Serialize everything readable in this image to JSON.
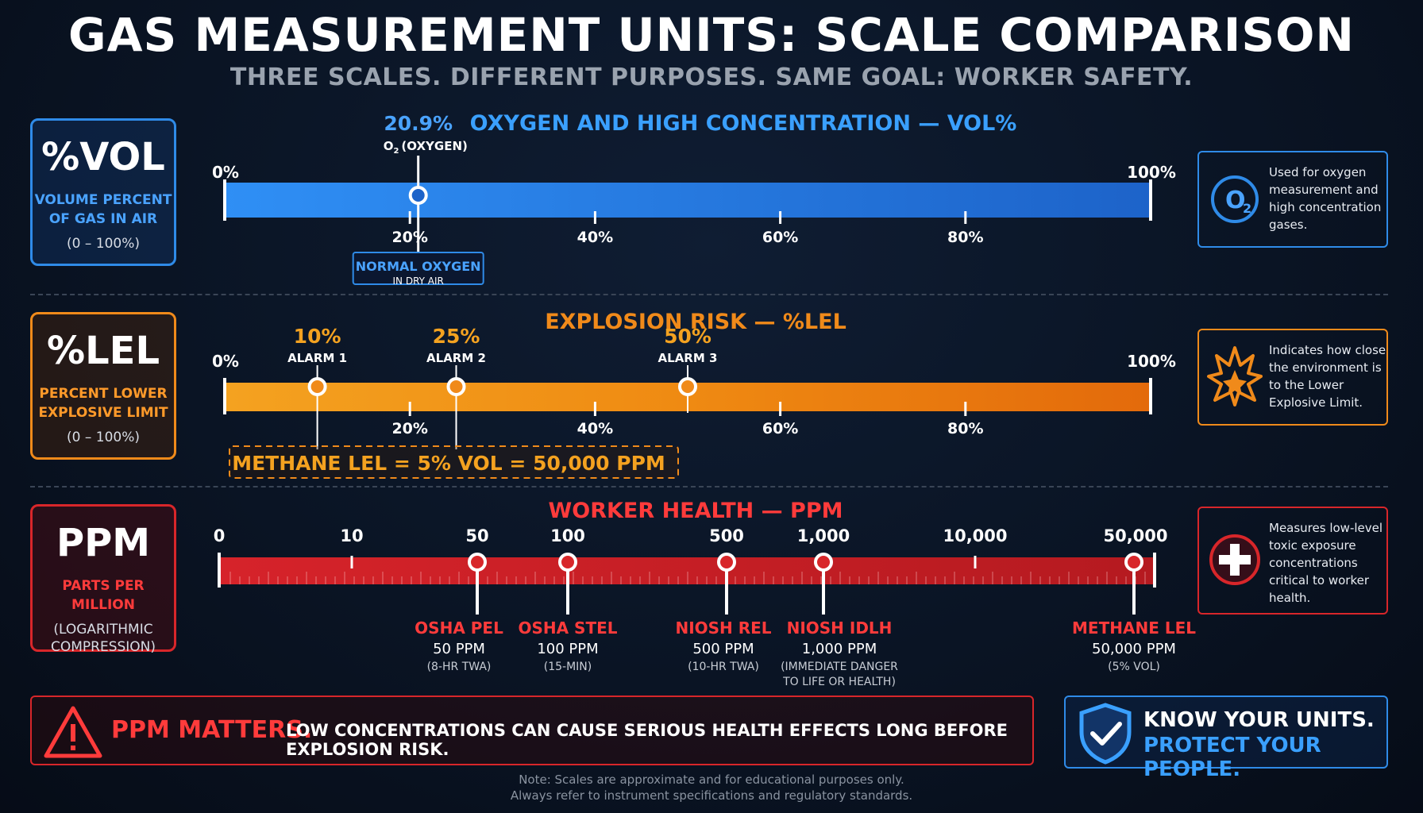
{
  "title": "GAS MEASUREMENT UNITS: SCALE COMPARISON",
  "subtitle": "THREE SCALES. DIFFERENT PURPOSES. SAME GOAL: WORKER SAFETY.",
  "colors": {
    "vol": "#2f8be8",
    "lel": "#f08a1a",
    "ppm": "#d8262a"
  },
  "vol": {
    "unit": "%VOL",
    "desc1": "VOLUME PERCENT",
    "desc2": "OF GAS IN AIR",
    "range": "(0 – 100%)",
    "heading": "OXYGEN AND HIGH CONCENTRATION — VOL%",
    "start_label": "0%",
    "end_label": "100%",
    "ticks": [
      {
        "value": 20,
        "label": "20%"
      },
      {
        "value": 40,
        "label": "40%"
      },
      {
        "value": 60,
        "label": "60%"
      },
      {
        "value": 80,
        "label": "80%"
      }
    ],
    "marker": {
      "value": 20.9,
      "value_label": "20.9%",
      "gas_prefix": "O",
      "gas_sub": "2",
      "gas_name": "(OXYGEN)",
      "note1": "NORMAL OXYGEN",
      "note2": "IN DRY AIR"
    },
    "info": "Used for oxygen measurement and high concentration gases.",
    "icon": "o2-icon"
  },
  "lel": {
    "unit": "%LEL",
    "desc1": "PERCENT LOWER",
    "desc2": "EXPLOSIVE LIMIT",
    "range": "(0 – 100%)",
    "heading": "EXPLOSION RISK — %LEL",
    "start_label": "0%",
    "end_label": "100%",
    "ticks": [
      {
        "value": 20,
        "label": "20%"
      },
      {
        "value": 40,
        "label": "40%"
      },
      {
        "value": 60,
        "label": "60%"
      },
      {
        "value": 80,
        "label": "80%"
      }
    ],
    "alarms": [
      {
        "value": 10,
        "value_label": "10%",
        "name": "ALARM 1"
      },
      {
        "value": 25,
        "value_label": "25%",
        "name": "ALARM 2"
      },
      {
        "value": 50,
        "value_label": "50%",
        "name": "ALARM 3"
      }
    ],
    "callout": "METHANE LEL = 5% VOL = 50,000 PPM",
    "info": "Indicates how close the environment is to the Lower Explosive Limit.",
    "icon": "explosion-icon"
  },
  "ppm": {
    "unit": "PPM",
    "desc1": "PARTS PER MILLION",
    "range1": "(LOGARITHMIC",
    "range2": "COMPRESSION)",
    "heading": "WORKER HEALTH — PPM",
    "ticks": [
      "0",
      "10",
      "50",
      "100",
      "500",
      "1,000",
      "10,000",
      "50,000"
    ],
    "markers": [
      {
        "name": "OSHA PEL",
        "value": "50 PPM",
        "detail": "(8-HR TWA)"
      },
      {
        "name": "OSHA STEL",
        "value": "100 PPM",
        "detail": "(15-MIN)"
      },
      {
        "name": "NIOSH REL",
        "value": "500 PPM",
        "detail": "(10-HR TWA)"
      },
      {
        "name": "NIOSH IDLH",
        "value": "1,000 PPM",
        "detail": "(IMMEDIATE DANGER",
        "detail2": "TO LIFE OR HEALTH)"
      },
      {
        "name": "METHANE LEL",
        "value": "50,000 PPM",
        "detail": "(5% VOL)"
      }
    ],
    "info": "Measures low-level toxic exposure concentrations critical to worker health.",
    "icon": "medical-cross-icon"
  },
  "bottom": {
    "matters": "PPM MATTERS.",
    "message": "LOW CONCENTRATIONS CAN CAUSE SERIOUS HEALTH EFFECTS LONG BEFORE EXPLOSION RISK.",
    "know1": "KNOW YOUR UNITS.",
    "know2": "PROTECT YOUR PEOPLE."
  },
  "note1": "Note: Scales are approximate and for educational purposes only.",
  "note2": "Always refer to instrument specifications and regulatory standards."
}
